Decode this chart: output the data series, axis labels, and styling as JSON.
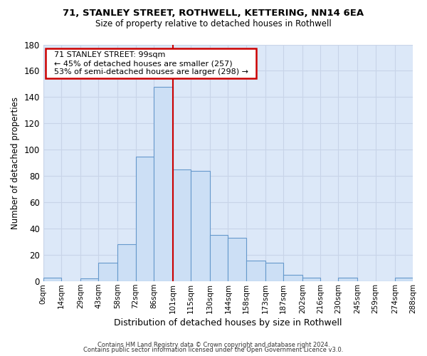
{
  "title": "71, STANLEY STREET, ROTHWELL, KETTERING, NN14 6EA",
  "subtitle": "Size of property relative to detached houses in Rothwell",
  "xlabel": "Distribution of detached houses by size in Rothwell",
  "ylabel": "Number of detached properties",
  "bar_color": "#ccdff5",
  "bar_edge_color": "#6699cc",
  "grid_color": "#c8d4e8",
  "plot_bg_color": "#dce8f8",
  "fig_bg_color": "#ffffff",
  "vline_x": 101,
  "vline_color": "#cc0000",
  "bin_edges": [
    0,
    14,
    29,
    43,
    58,
    72,
    86,
    101,
    115,
    130,
    144,
    158,
    173,
    187,
    202,
    216,
    230,
    245,
    259,
    274,
    288
  ],
  "bin_labels": [
    "0sqm",
    "14sqm",
    "29sqm",
    "43sqm",
    "58sqm",
    "72sqm",
    "86sqm",
    "101sqm",
    "115sqm",
    "130sqm",
    "144sqm",
    "158sqm",
    "173sqm",
    "187sqm",
    "202sqm",
    "216sqm",
    "230sqm",
    "245sqm",
    "259sqm",
    "274sqm",
    "288sqm"
  ],
  "counts": [
    3,
    0,
    2,
    14,
    28,
    95,
    148,
    85,
    84,
    35,
    33,
    16,
    14,
    5,
    3,
    0,
    3,
    0,
    0,
    3
  ],
  "ylim": [
    0,
    180
  ],
  "yticks": [
    0,
    20,
    40,
    60,
    80,
    100,
    120,
    140,
    160,
    180
  ],
  "annotation_title": "71 STANLEY STREET: 99sqm",
  "annotation_line1": "← 45% of detached houses are smaller (257)",
  "annotation_line2": "53% of semi-detached houses are larger (298) →",
  "annotation_box_color": "#ffffff",
  "annotation_box_edge": "#cc0000",
  "footnote1": "Contains HM Land Registry data © Crown copyright and database right 2024.",
  "footnote2": "Contains public sector information licensed under the Open Government Licence v3.0."
}
